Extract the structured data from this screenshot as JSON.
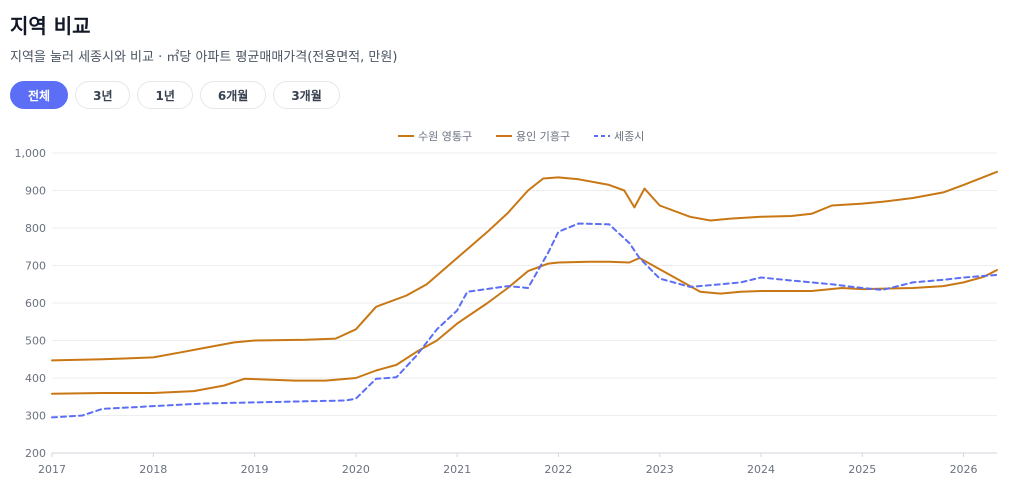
{
  "header": {
    "title": "지역 비교",
    "subtitle": "지역을 눌러 세종시와 비교 · ㎡당 아파트 평균매매가격(전용면적, 만원)"
  },
  "tabs": [
    {
      "label": "전체",
      "active": true
    },
    {
      "label": "3년",
      "active": false
    },
    {
      "label": "1년",
      "active": false
    },
    {
      "label": "6개월",
      "active": false
    },
    {
      "label": "3개월",
      "active": false
    }
  ],
  "colors": {
    "accent": "#5b6ef5",
    "suwon": "#c97714",
    "yongin": "#c97714",
    "sejong": "#5b6ef5"
  },
  "chart_data": {
    "type": "line",
    "legend_position": "top-center",
    "grid": true,
    "xlim": [
      2017,
      2026.33
    ],
    "ylim": [
      200,
      1000
    ],
    "x_ticks": [
      "2017",
      "2018",
      "2019",
      "2020",
      "2021",
      "2022",
      "2023",
      "2024",
      "2025",
      "2026"
    ],
    "y_ticks": [
      "200",
      "300",
      "400",
      "500",
      "600",
      "700",
      "800",
      "900",
      "1,000"
    ],
    "series": [
      {
        "name": "수원 영통구",
        "style": "solid",
        "color": "#c97714",
        "points": [
          [
            2017,
            447
          ],
          [
            2017.5,
            450
          ],
          [
            2018,
            455
          ],
          [
            2018.3,
            470
          ],
          [
            2018.5,
            480
          ],
          [
            2018.8,
            495
          ],
          [
            2019,
            500
          ],
          [
            2019.5,
            502
          ],
          [
            2019.8,
            505
          ],
          [
            2020,
            530
          ],
          [
            2020.2,
            590
          ],
          [
            2020.5,
            620
          ],
          [
            2020.7,
            650
          ],
          [
            2021,
            720
          ],
          [
            2021.3,
            790
          ],
          [
            2021.5,
            840
          ],
          [
            2021.7,
            900
          ],
          [
            2021.85,
            932
          ],
          [
            2022,
            935
          ],
          [
            2022.2,
            930
          ],
          [
            2022.5,
            915
          ],
          [
            2022.65,
            900
          ],
          [
            2022.75,
            855
          ],
          [
            2022.85,
            905
          ],
          [
            2023,
            860
          ],
          [
            2023.3,
            830
          ],
          [
            2023.5,
            820
          ],
          [
            2023.7,
            825
          ],
          [
            2024,
            830
          ],
          [
            2024.3,
            832
          ],
          [
            2024.5,
            838
          ],
          [
            2024.7,
            860
          ],
          [
            2025,
            865
          ],
          [
            2025.2,
            870
          ],
          [
            2025.5,
            880
          ],
          [
            2025.8,
            895
          ],
          [
            2026,
            915
          ],
          [
            2026.33,
            950
          ]
        ]
      },
      {
        "name": "용인 기흥구",
        "style": "solid",
        "color": "#c97714",
        "points": [
          [
            2017,
            358
          ],
          [
            2017.5,
            360
          ],
          [
            2018,
            360
          ],
          [
            2018.4,
            365
          ],
          [
            2018.7,
            380
          ],
          [
            2018.9,
            398
          ],
          [
            2019,
            397
          ],
          [
            2019.4,
            393
          ],
          [
            2019.7,
            393
          ],
          [
            2020,
            400
          ],
          [
            2020.2,
            420
          ],
          [
            2020.4,
            435
          ],
          [
            2020.6,
            470
          ],
          [
            2020.8,
            500
          ],
          [
            2021,
            545
          ],
          [
            2021.3,
            600
          ],
          [
            2021.5,
            640
          ],
          [
            2021.7,
            685
          ],
          [
            2021.9,
            705
          ],
          [
            2022,
            708
          ],
          [
            2022.3,
            710
          ],
          [
            2022.5,
            710
          ],
          [
            2022.7,
            708
          ],
          [
            2022.8,
            720
          ],
          [
            2023,
            690
          ],
          [
            2023.2,
            660
          ],
          [
            2023.4,
            630
          ],
          [
            2023.6,
            625
          ],
          [
            2023.8,
            630
          ],
          [
            2024,
            632
          ],
          [
            2024.5,
            632
          ],
          [
            2024.8,
            640
          ],
          [
            2025,
            637
          ],
          [
            2025.5,
            640
          ],
          [
            2025.8,
            645
          ],
          [
            2026,
            655
          ],
          [
            2026.2,
            670
          ],
          [
            2026.33,
            688
          ]
        ]
      },
      {
        "name": "세종시",
        "style": "dashed",
        "color": "#5b6ef5",
        "points": [
          [
            2017,
            295
          ],
          [
            2017.3,
            300
          ],
          [
            2017.5,
            318
          ],
          [
            2017.8,
            322
          ],
          [
            2018,
            325
          ],
          [
            2018.5,
            332
          ],
          [
            2019,
            335
          ],
          [
            2019.5,
            338
          ],
          [
            2019.9,
            340
          ],
          [
            2020,
            345
          ],
          [
            2020.2,
            398
          ],
          [
            2020.4,
            402
          ],
          [
            2020.6,
            460
          ],
          [
            2020.8,
            530
          ],
          [
            2021,
            580
          ],
          [
            2021.1,
            630
          ],
          [
            2021.5,
            645
          ],
          [
            2021.7,
            640
          ],
          [
            2021.9,
            735
          ],
          [
            2022,
            790
          ],
          [
            2022.2,
            812
          ],
          [
            2022.5,
            810
          ],
          [
            2022.7,
            760
          ],
          [
            2022.8,
            720
          ],
          [
            2023,
            665
          ],
          [
            2023.3,
            643
          ],
          [
            2023.6,
            650
          ],
          [
            2023.8,
            655
          ],
          [
            2024,
            668
          ],
          [
            2024.3,
            660
          ],
          [
            2024.7,
            650
          ],
          [
            2025,
            640
          ],
          [
            2025.2,
            635
          ],
          [
            2025.5,
            655
          ],
          [
            2025.8,
            662
          ],
          [
            2026,
            668
          ],
          [
            2026.33,
            675
          ]
        ]
      }
    ]
  }
}
